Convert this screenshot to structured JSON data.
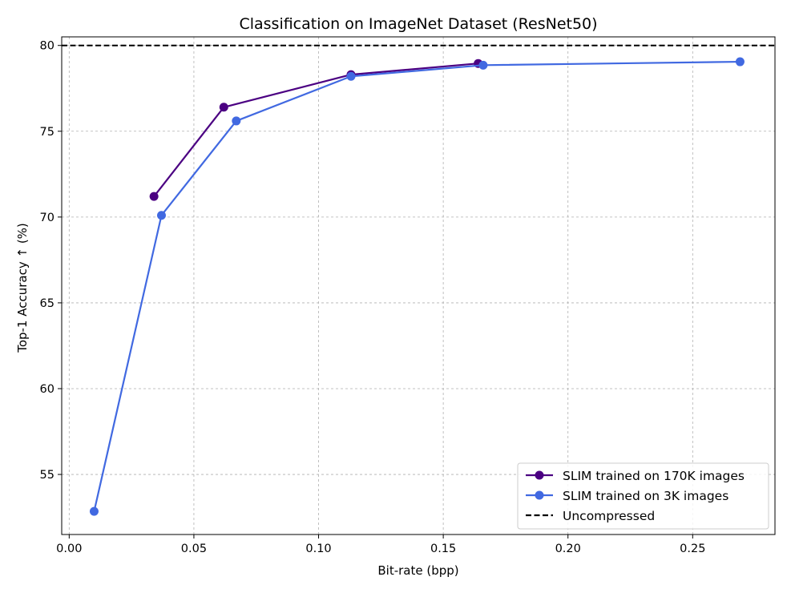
{
  "chart_data": {
    "type": "line",
    "title": "Classification on ImageNet Dataset (ResNet50)",
    "xlabel": "Bit-rate (bpp)",
    "ylabel": "Top-1 Accuracy ↑ (%)",
    "xlim": [
      -0.003,
      0.283
    ],
    "ylim": [
      51.5,
      80.5
    ],
    "xticks": [
      0.0,
      0.05,
      0.1,
      0.15,
      0.2,
      0.25
    ],
    "xtick_labels": [
      "0.00",
      "0.05",
      "0.10",
      "0.15",
      "0.20",
      "0.25"
    ],
    "yticks": [
      55,
      60,
      65,
      70,
      75,
      80
    ],
    "ytick_labels": [
      "55",
      "60",
      "65",
      "70",
      "75",
      "80"
    ],
    "grid": true,
    "legend_position": "bottom-right",
    "series": [
      {
        "name": "SLIM trained on 170K images",
        "color": "#4b0082",
        "marker": "circle",
        "x": [
          0.034,
          0.062,
          0.113,
          0.164
        ],
        "y": [
          71.2,
          76.4,
          78.3,
          78.95
        ]
      },
      {
        "name": "SLIM trained on 3K images",
        "color": "#4169e1",
        "marker": "circle",
        "x": [
          0.01,
          0.037,
          0.067,
          0.113,
          0.166,
          0.269
        ],
        "y": [
          52.85,
          70.1,
          75.6,
          78.2,
          78.85,
          79.05
        ]
      }
    ],
    "reference_lines": [
      {
        "name": "Uncompressed",
        "orientation": "horizontal",
        "y": 80,
        "color": "#000000",
        "style": "dashed"
      }
    ]
  }
}
